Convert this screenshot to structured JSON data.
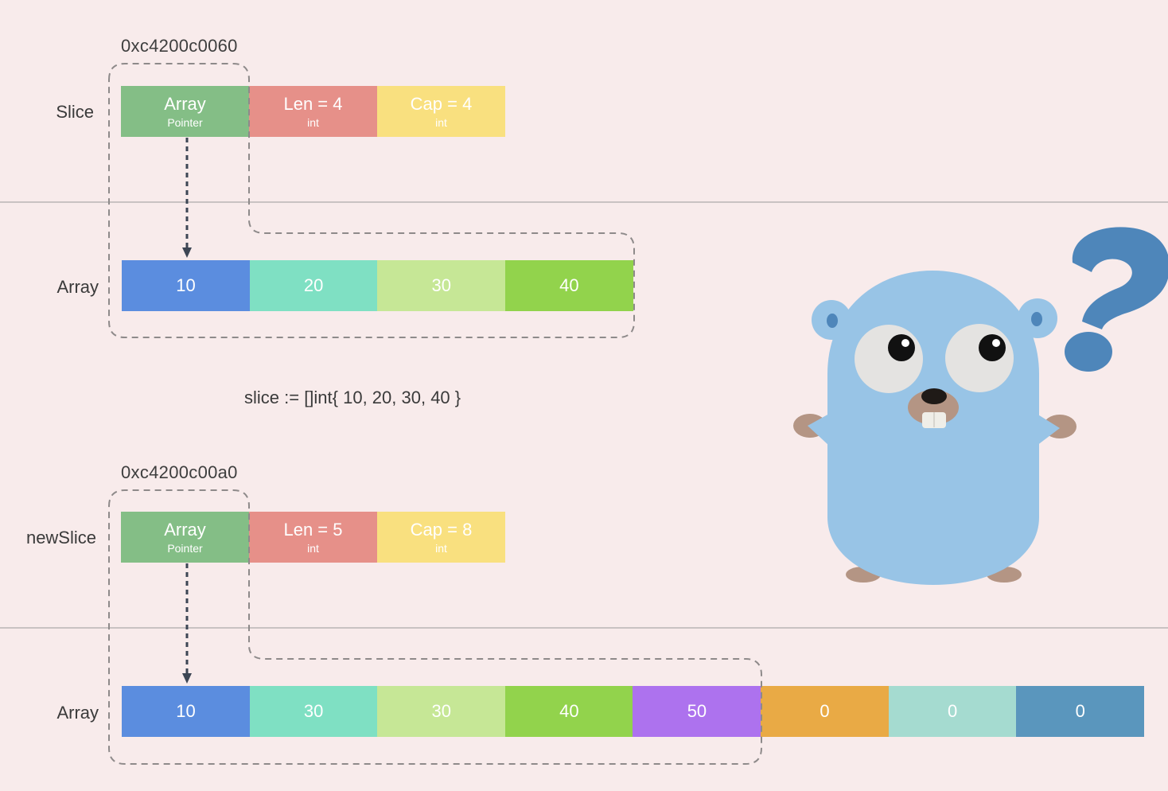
{
  "slice_block": {
    "address": "0xc4200c0060",
    "row_label": "Slice",
    "header": [
      {
        "main": "Array",
        "sub": "Pointer",
        "color": "#84be86"
      },
      {
        "main": "Len = 4",
        "sub": "int",
        "color": "#e69089"
      },
      {
        "main": "Cap = 4",
        "sub": "int",
        "color": "#f9e07f"
      }
    ],
    "array_label": "Array",
    "array": [
      {
        "value": "10",
        "color": "#5b8ddf"
      },
      {
        "value": "20",
        "color": "#7fe0c3"
      },
      {
        "value": "30",
        "color": "#c6e796"
      },
      {
        "value": "40",
        "color": "#92d34c"
      }
    ]
  },
  "code_line": "slice := []int{ 10, 20, 30, 40 }",
  "newslice_block": {
    "address": "0xc4200c00a0",
    "row_label": "newSlice",
    "header": [
      {
        "main": "Array",
        "sub": "Pointer",
        "color": "#84be86"
      },
      {
        "main": "Len = 5",
        "sub": "int",
        "color": "#e69089"
      },
      {
        "main": "Cap = 8",
        "sub": "int",
        "color": "#f9e07f"
      }
    ],
    "array_label": "Array",
    "array": [
      {
        "value": "10",
        "color": "#5b8ddf"
      },
      {
        "value": "30",
        "color": "#7fe0c3"
      },
      {
        "value": "30",
        "color": "#c6e796"
      },
      {
        "value": "40",
        "color": "#92d34c"
      },
      {
        "value": "50",
        "color": "#ad72ee"
      },
      {
        "value": "0",
        "color": "#e9aa45"
      },
      {
        "value": "0",
        "color": "#a5dbd0"
      },
      {
        "value": "0",
        "color": "#5a96bd"
      }
    ]
  },
  "mascot": {
    "icon": "gopher-mascot-icon",
    "question_icon": "question-mark-icon",
    "body_color": "#98c4e6",
    "question_color": "#4e86ba"
  }
}
